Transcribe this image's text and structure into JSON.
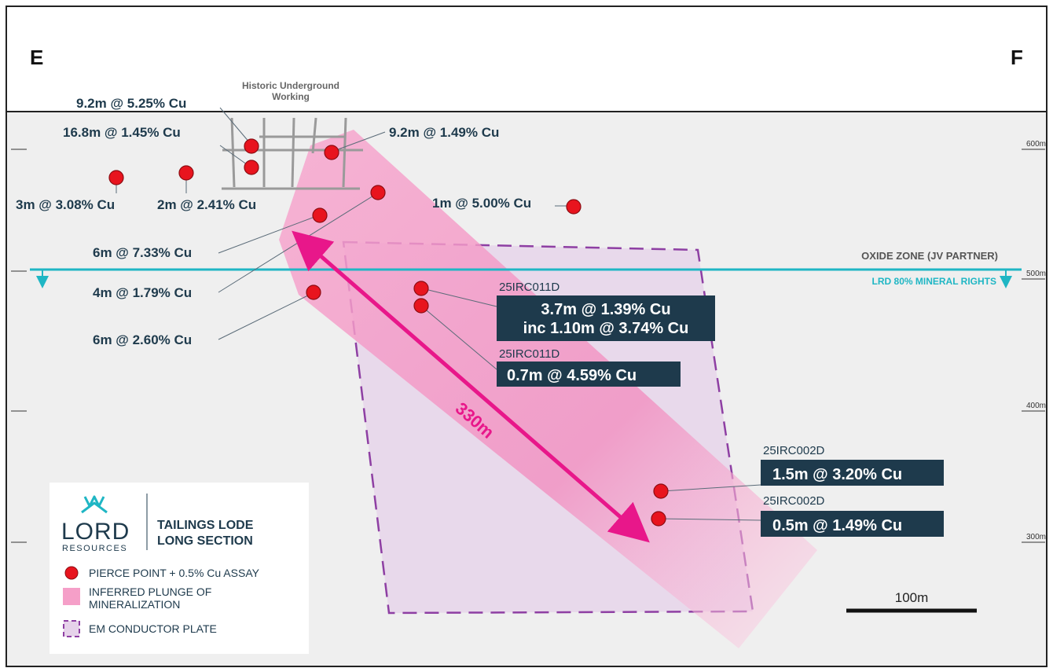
{
  "section": {
    "start_label": "E",
    "end_label": "F",
    "historic_label_line1": "Historic Underground",
    "historic_label_line2": "Working"
  },
  "elevations": [
    "600m",
    "500m",
    "400m",
    "300m"
  ],
  "zones": {
    "oxide": "OXIDE ZONE (JV PARTNER)",
    "rights": "LRD 80% MINERAL RIGHTS"
  },
  "plunge_length": "330m",
  "scale_bar": "100m",
  "intercepts": [
    {
      "label": "9.2m @ 5.25% Cu"
    },
    {
      "label": "16.8m @ 1.45% Cu"
    },
    {
      "label": "9.2m @ 1.49% Cu"
    },
    {
      "label": "3m @ 3.08% Cu"
    },
    {
      "label": "2m @ 2.41% Cu"
    },
    {
      "label": "1m @ 5.00% Cu"
    },
    {
      "label": "6m @ 7.33% Cu"
    },
    {
      "label": "4m @ 1.79% Cu"
    },
    {
      "label": "6m @ 2.60% Cu"
    }
  ],
  "new_holes": [
    {
      "hole": "25IRC011D",
      "line1": "3.7m @ 1.39% Cu",
      "line2": "inc 1.10m @ 3.74% Cu"
    },
    {
      "hole": "25IRC011D",
      "line1": "0.7m @ 4.59% Cu"
    },
    {
      "hole": "25IRC002D",
      "line1": "1.5m @ 3.20% Cu"
    },
    {
      "hole": "25IRC002D",
      "line1": "0.5m @ 1.49% Cu"
    }
  ],
  "legend": {
    "logo_word": "LORD",
    "logo_sub": "RESOURCES",
    "title_line1": "TAILINGS LODE",
    "title_line2": "LONG SECTION",
    "pierce": "PIERCE POINT + 0.5% Cu ASSAY",
    "plunge_line1": "INFERRED PLUNGE OF",
    "plunge_line2": "MINERALIZATION",
    "plate": "EM CONDUCTOR PLATE"
  },
  "colors": {
    "navy": "#1e3a4c",
    "pierce": "#e8141e",
    "plunge": "#f59fc8",
    "plate": "#8e3fa3",
    "cyan": "#1fb6c4",
    "magenta": "#e8178a"
  }
}
